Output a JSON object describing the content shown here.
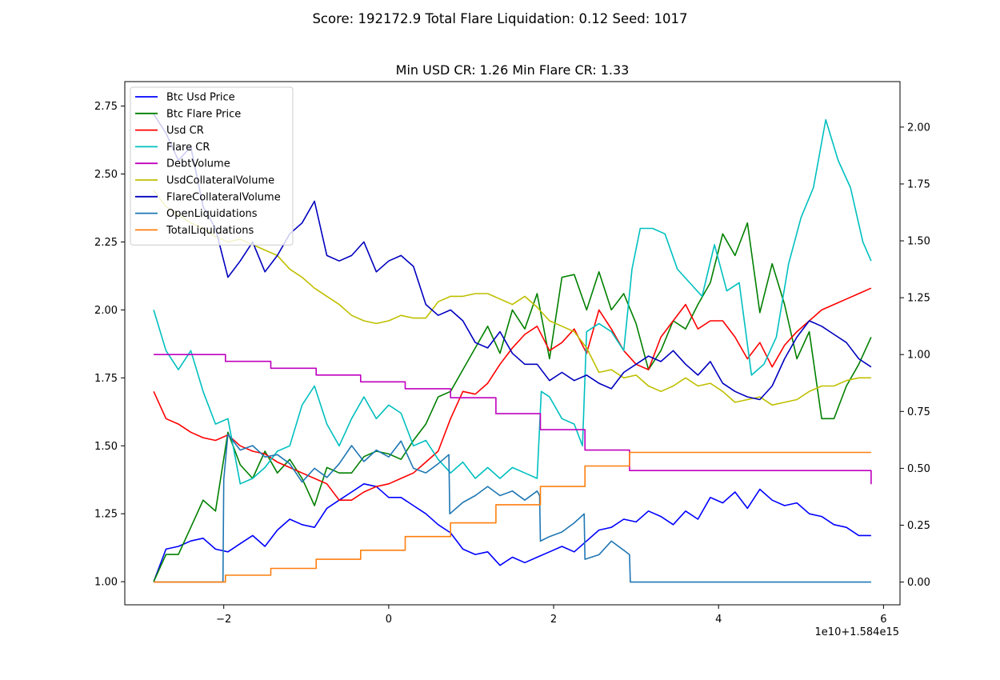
{
  "figure": {
    "suptitle": "Score: 192172.9 Total Flare Liquidation: 0.12 Seed: 1017",
    "title": "Min USD CR: 1.26 Min Flare CR: 1.33",
    "x_offset_label": "1e10+1.584e15"
  },
  "chart_data": {
    "type": "line",
    "title": "Min USD CR: 1.26 Min Flare CR: 1.33",
    "suptitle": "Score: 192172.9 Total Flare Liquidation: 0.12 Seed: 1017",
    "xlabel": "",
    "ylabel": "",
    "x_offset": "1e10+1.584e15",
    "xlim": [
      -3.2,
      6.2
    ],
    "x_ticks": [
      -2,
      0,
      2,
      4,
      6
    ],
    "x_tick_labels": [
      "−2",
      "0",
      "2",
      "4",
      "6"
    ],
    "ylim_left": [
      0.915,
      2.84
    ],
    "y_ticks_left": [
      1.0,
      1.25,
      1.5,
      1.75,
      2.0,
      2.25,
      2.5,
      2.75
    ],
    "y_tick_labels_left": [
      "1.00",
      "1.25",
      "1.50",
      "1.75",
      "2.00",
      "2.25",
      "2.50",
      "2.75"
    ],
    "ylim_right": [
      -0.1,
      2.2
    ],
    "y_ticks_right": [
      0.0,
      0.25,
      0.5,
      0.75,
      1.0,
      1.25,
      1.5,
      1.75,
      2.0
    ],
    "y_tick_labels_right": [
      "0.00",
      "0.25",
      "0.50",
      "0.75",
      "1.00",
      "1.25",
      "1.50",
      "1.75",
      "2.00"
    ],
    "grid": false,
    "legend_position": "top-left",
    "series": [
      {
        "name": "Btc Usd Price",
        "color": "#0000ff",
        "axis": "left",
        "step": false,
        "x": [
          -2.85,
          -2.7,
          -2.55,
          -2.4,
          -2.25,
          -2.1,
          -1.95,
          -1.8,
          -1.65,
          -1.5,
          -1.35,
          -1.2,
          -1.05,
          -0.9,
          -0.75,
          -0.6,
          -0.45,
          -0.3,
          -0.15,
          0.0,
          0.15,
          0.3,
          0.45,
          0.6,
          0.75,
          0.9,
          1.05,
          1.2,
          1.35,
          1.5,
          1.65,
          1.8,
          1.95,
          2.1,
          2.25,
          2.4,
          2.55,
          2.7,
          2.85,
          3.0,
          3.15,
          3.3,
          3.45,
          3.6,
          3.75,
          3.9,
          4.05,
          4.2,
          4.35,
          4.5,
          4.65,
          4.8,
          4.95,
          5.1,
          5.25,
          5.4,
          5.55,
          5.7,
          5.85
        ],
        "y": [
          1.0,
          1.12,
          1.13,
          1.15,
          1.16,
          1.12,
          1.11,
          1.14,
          1.17,
          1.13,
          1.19,
          1.23,
          1.21,
          1.2,
          1.27,
          1.3,
          1.33,
          1.36,
          1.35,
          1.31,
          1.31,
          1.28,
          1.25,
          1.21,
          1.18,
          1.12,
          1.1,
          1.11,
          1.06,
          1.09,
          1.07,
          1.09,
          1.11,
          1.13,
          1.11,
          1.15,
          1.19,
          1.2,
          1.23,
          1.22,
          1.26,
          1.24,
          1.21,
          1.26,
          1.23,
          1.31,
          1.29,
          1.33,
          1.27,
          1.34,
          1.3,
          1.28,
          1.29,
          1.25,
          1.24,
          1.21,
          1.2,
          1.17,
          1.17
        ]
      },
      {
        "name": "Btc Flare Price",
        "color": "#008000",
        "axis": "left",
        "step": false,
        "x": [
          -2.85,
          -2.7,
          -2.55,
          -2.4,
          -2.25,
          -2.1,
          -1.95,
          -1.8,
          -1.65,
          -1.5,
          -1.35,
          -1.2,
          -1.05,
          -0.9,
          -0.75,
          -0.6,
          -0.45,
          -0.3,
          -0.15,
          0.0,
          0.15,
          0.3,
          0.45,
          0.6,
          0.75,
          0.9,
          1.05,
          1.2,
          1.35,
          1.5,
          1.65,
          1.8,
          1.95,
          2.1,
          2.25,
          2.4,
          2.55,
          2.7,
          2.85,
          3.0,
          3.15,
          3.3,
          3.45,
          3.6,
          3.75,
          3.9,
          4.05,
          4.2,
          4.35,
          4.5,
          4.65,
          4.8,
          4.95,
          5.1,
          5.25,
          5.4,
          5.55,
          5.7,
          5.85
        ],
        "y": [
          1.0,
          1.1,
          1.1,
          1.2,
          1.3,
          1.26,
          1.55,
          1.43,
          1.38,
          1.48,
          1.4,
          1.45,
          1.38,
          1.28,
          1.42,
          1.4,
          1.4,
          1.46,
          1.48,
          1.47,
          1.45,
          1.52,
          1.58,
          1.68,
          1.7,
          1.78,
          1.86,
          1.94,
          1.84,
          2.0,
          1.93,
          2.06,
          1.82,
          2.12,
          2.13,
          2.0,
          2.14,
          2.0,
          2.06,
          1.95,
          1.78,
          1.85,
          1.96,
          1.93,
          2.02,
          2.1,
          2.28,
          2.2,
          2.32,
          1.99,
          2.17,
          2.02,
          1.82,
          1.92,
          1.6,
          1.6,
          1.72,
          1.8,
          1.9
        ]
      },
      {
        "name": "Usd CR",
        "color": "#ff0000",
        "axis": "left",
        "step": false,
        "x": [
          -2.85,
          -2.7,
          -2.55,
          -2.4,
          -2.25,
          -2.1,
          -1.95,
          -1.8,
          -1.65,
          -1.5,
          -1.35,
          -1.2,
          -1.05,
          -0.9,
          -0.75,
          -0.6,
          -0.45,
          -0.3,
          -0.15,
          0.0,
          0.15,
          0.3,
          0.45,
          0.6,
          0.75,
          0.9,
          1.05,
          1.2,
          1.35,
          1.5,
          1.65,
          1.8,
          1.95,
          2.1,
          2.25,
          2.4,
          2.55,
          2.7,
          2.85,
          3.0,
          3.15,
          3.3,
          3.45,
          3.6,
          3.75,
          3.9,
          4.05,
          4.2,
          4.35,
          4.5,
          4.65,
          4.8,
          4.95,
          5.1,
          5.25,
          5.4,
          5.55,
          5.7,
          5.85
        ],
        "y": [
          1.7,
          1.6,
          1.58,
          1.55,
          1.53,
          1.52,
          1.54,
          1.5,
          1.48,
          1.47,
          1.44,
          1.42,
          1.4,
          1.38,
          1.36,
          1.3,
          1.3,
          1.33,
          1.35,
          1.36,
          1.38,
          1.4,
          1.44,
          1.48,
          1.6,
          1.7,
          1.69,
          1.73,
          1.8,
          1.86,
          1.91,
          1.94,
          1.85,
          1.88,
          1.93,
          1.84,
          2.0,
          1.93,
          1.85,
          1.8,
          1.78,
          1.9,
          1.96,
          2.02,
          1.93,
          1.96,
          1.96,
          1.9,
          1.82,
          1.88,
          1.79,
          1.87,
          1.92,
          1.96,
          2.0,
          2.02,
          2.04,
          2.06,
          2.08
        ]
      },
      {
        "name": "Flare CR",
        "color": "#00bfbf",
        "axis": "left",
        "step": false,
        "x": [
          -2.85,
          -2.7,
          -2.55,
          -2.4,
          -2.25,
          -2.1,
          -1.95,
          -1.8,
          -1.65,
          -1.5,
          -1.35,
          -1.2,
          -1.05,
          -0.9,
          -0.75,
          -0.6,
          -0.45,
          -0.3,
          -0.15,
          0.0,
          0.15,
          0.3,
          0.45,
          0.6,
          0.75,
          0.9,
          1.05,
          1.2,
          1.35,
          1.5,
          1.65,
          1.8,
          1.85,
          1.95,
          2.1,
          2.25,
          2.35,
          2.4,
          2.55,
          2.7,
          2.85,
          2.95,
          3.05,
          3.2,
          3.35,
          3.5,
          3.65,
          3.8,
          3.95,
          4.1,
          4.25,
          4.4,
          4.55,
          4.7,
          4.85,
          5.0,
          5.15,
          5.3,
          5.45,
          5.6,
          5.75,
          5.85
        ],
        "y": [
          2.0,
          1.85,
          1.78,
          1.85,
          1.7,
          1.58,
          1.6,
          1.36,
          1.38,
          1.42,
          1.48,
          1.5,
          1.65,
          1.72,
          1.58,
          1.5,
          1.6,
          1.68,
          1.6,
          1.65,
          1.62,
          1.5,
          1.52,
          1.45,
          1.4,
          1.44,
          1.38,
          1.42,
          1.38,
          1.42,
          1.4,
          1.38,
          1.7,
          1.68,
          1.6,
          1.58,
          1.5,
          1.92,
          1.95,
          1.92,
          1.85,
          2.15,
          2.3,
          2.3,
          2.28,
          2.15,
          2.1,
          2.05,
          2.24,
          2.07,
          2.1,
          1.76,
          1.8,
          1.9,
          2.17,
          2.34,
          2.45,
          2.7,
          2.55,
          2.45,
          2.25,
          2.18
        ]
      },
      {
        "name": "DebtVolume",
        "color": "#bf00bf",
        "axis": "right",
        "step": true,
        "x": [
          -2.85,
          -1.98,
          -1.43,
          -0.88,
          -0.34,
          0.2,
          0.75,
          1.3,
          1.84,
          2.38,
          2.92,
          5.85
        ],
        "y": [
          1.0,
          0.97,
          0.94,
          0.91,
          0.88,
          0.85,
          0.81,
          0.74,
          0.67,
          0.58,
          0.49,
          0.43
        ]
      },
      {
        "name": "UsdCollateralVolume",
        "color": "#bfbf00",
        "axis": "left",
        "step": false,
        "x": [
          -2.85,
          -2.7,
          -2.55,
          -2.4,
          -2.25,
          -2.1,
          -1.95,
          -1.8,
          -1.65,
          -1.5,
          -1.35,
          -1.2,
          -1.05,
          -0.9,
          -0.75,
          -0.6,
          -0.45,
          -0.3,
          -0.15,
          0.0,
          0.15,
          0.3,
          0.45,
          0.6,
          0.75,
          0.9,
          1.05,
          1.2,
          1.35,
          1.5,
          1.65,
          1.8,
          1.95,
          2.1,
          2.25,
          2.4,
          2.55,
          2.7,
          2.85,
          3.0,
          3.15,
          3.3,
          3.45,
          3.6,
          3.75,
          3.9,
          4.05,
          4.2,
          4.35,
          4.5,
          4.65,
          4.8,
          4.95,
          5.1,
          5.25,
          5.4,
          5.55,
          5.7,
          5.85
        ],
        "y": [
          2.44,
          2.38,
          2.35,
          2.32,
          2.3,
          2.27,
          2.25,
          2.26,
          2.24,
          2.22,
          2.2,
          2.15,
          2.12,
          2.08,
          2.05,
          2.02,
          1.98,
          1.96,
          1.95,
          1.96,
          1.98,
          1.97,
          1.97,
          2.03,
          2.05,
          2.05,
          2.06,
          2.06,
          2.04,
          2.02,
          2.05,
          2.01,
          1.96,
          1.94,
          1.92,
          1.86,
          1.77,
          1.78,
          1.75,
          1.76,
          1.72,
          1.7,
          1.72,
          1.75,
          1.72,
          1.73,
          1.7,
          1.66,
          1.67,
          1.68,
          1.65,
          1.66,
          1.67,
          1.7,
          1.72,
          1.72,
          1.74,
          1.75,
          1.75
        ]
      },
      {
        "name": "FlareCollateralVolume",
        "color": "#0000bf",
        "axis": "left",
        "step": false,
        "x": [
          -2.85,
          -2.7,
          -2.55,
          -2.4,
          -2.25,
          -2.1,
          -1.95,
          -1.8,
          -1.65,
          -1.5,
          -1.35,
          -1.2,
          -1.05,
          -0.9,
          -0.75,
          -0.6,
          -0.45,
          -0.3,
          -0.15,
          0.0,
          0.15,
          0.3,
          0.45,
          0.6,
          0.75,
          0.9,
          1.05,
          1.2,
          1.35,
          1.5,
          1.65,
          1.8,
          1.95,
          2.1,
          2.25,
          2.4,
          2.55,
          2.7,
          2.85,
          3.0,
          3.15,
          3.3,
          3.45,
          3.6,
          3.75,
          3.9,
          4.05,
          4.2,
          4.35,
          4.5,
          4.65,
          4.8,
          4.95,
          5.1,
          5.25,
          5.4,
          5.55,
          5.7,
          5.85
        ],
        "y": [
          2.72,
          2.65,
          2.55,
          2.6,
          2.38,
          2.3,
          2.12,
          2.18,
          2.25,
          2.14,
          2.2,
          2.28,
          2.32,
          2.4,
          2.2,
          2.18,
          2.2,
          2.25,
          2.14,
          2.18,
          2.2,
          2.16,
          2.02,
          1.98,
          2.0,
          1.96,
          1.88,
          1.86,
          1.92,
          1.84,
          1.8,
          1.8,
          1.74,
          1.77,
          1.74,
          1.76,
          1.73,
          1.71,
          1.77,
          1.8,
          1.83,
          1.81,
          1.85,
          1.8,
          1.76,
          1.81,
          1.73,
          1.7,
          1.68,
          1.67,
          1.72,
          1.82,
          1.9,
          1.96,
          1.94,
          1.91,
          1.88,
          1.82,
          1.79
        ]
      },
      {
        "name": "OpenLiquidations",
        "color": "#1f77b4",
        "axis": "right",
        "step": false,
        "x": [
          -2.85,
          -2.6,
          -2.3,
          -2.01,
          -2.0,
          -1.95,
          -1.8,
          -1.65,
          -1.5,
          -1.35,
          -1.2,
          -1.05,
          -0.9,
          -0.75,
          -0.6,
          -0.45,
          -0.3,
          -0.15,
          0.0,
          0.15,
          0.3,
          0.45,
          0.6,
          0.73,
          0.74,
          0.9,
          1.05,
          1.2,
          1.35,
          1.5,
          1.65,
          1.8,
          1.83,
          1.84,
          1.95,
          2.1,
          2.25,
          2.37,
          2.38,
          2.55,
          2.7,
          2.85,
          2.92,
          2.93,
          5.85
        ],
        "y": [
          0.0,
          0.0,
          0.0,
          0.0,
          0.45,
          0.65,
          0.58,
          0.6,
          0.55,
          0.56,
          0.52,
          0.44,
          0.5,
          0.46,
          0.52,
          0.6,
          0.53,
          0.58,
          0.55,
          0.62,
          0.5,
          0.48,
          0.52,
          0.56,
          0.3,
          0.35,
          0.38,
          0.42,
          0.38,
          0.4,
          0.36,
          0.4,
          0.38,
          0.18,
          0.2,
          0.22,
          0.26,
          0.3,
          0.1,
          0.12,
          0.18,
          0.14,
          0.12,
          0.0,
          0.0
        ]
      },
      {
        "name": "TotalLiquidations",
        "color": "#ff7f0e",
        "axis": "right",
        "step": true,
        "x": [
          -2.85,
          -1.98,
          -1.43,
          -0.88,
          -0.34,
          0.2,
          0.75,
          1.3,
          1.84,
          2.38,
          2.92,
          5.85
        ],
        "y": [
          0.0,
          0.03,
          0.06,
          0.1,
          0.14,
          0.2,
          0.26,
          0.34,
          0.42,
          0.51,
          0.57,
          0.57
        ]
      }
    ]
  }
}
